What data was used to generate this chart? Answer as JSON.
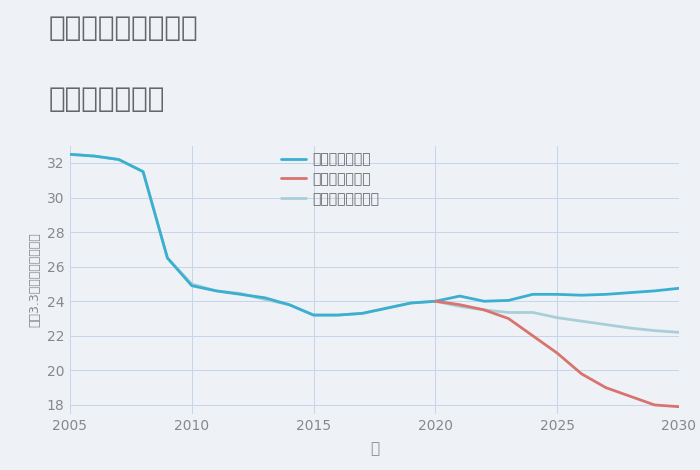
{
  "title_line1": "奈良県奈良市横井の",
  "title_line2": "土地の価格推移",
  "xlabel": "年",
  "ylabel": "坪（3.3㎡）単価（万円）",
  "background_color": "#eef2f7",
  "plot_bg_color": "#eef2f7",
  "good_scenario": {
    "label": "グッドシナリオ",
    "color": "#3aafd0",
    "x": [
      2005,
      2006,
      2007,
      2008,
      2009,
      2010,
      2011,
      2012,
      2013,
      2014,
      2015,
      2016,
      2017,
      2018,
      2019,
      2020,
      2021,
      2022,
      2023,
      2024,
      2025,
      2026,
      2027,
      2028,
      2029,
      2030
    ],
    "y": [
      32.5,
      32.4,
      32.2,
      31.5,
      26.5,
      24.9,
      24.6,
      24.4,
      24.2,
      23.8,
      23.2,
      23.2,
      23.3,
      23.6,
      23.9,
      24.0,
      24.3,
      24.0,
      24.05,
      24.4,
      24.4,
      24.35,
      24.4,
      24.5,
      24.6,
      24.75
    ]
  },
  "bad_scenario": {
    "label": "バッドシナリオ",
    "color": "#d9736e",
    "x": [
      2020,
      2021,
      2022,
      2023,
      2024,
      2025,
      2026,
      2027,
      2028,
      2029,
      2030
    ],
    "y": [
      24.0,
      23.8,
      23.5,
      23.0,
      22.0,
      21.0,
      19.8,
      19.0,
      18.5,
      18.0,
      17.9
    ]
  },
  "normal_scenario": {
    "label": "ノーマルシナリオ",
    "color": "#a8cfd8",
    "x": [
      2005,
      2006,
      2007,
      2008,
      2009,
      2010,
      2011,
      2012,
      2013,
      2014,
      2015,
      2016,
      2017,
      2018,
      2019,
      2020,
      2021,
      2022,
      2023,
      2024,
      2025,
      2026,
      2027,
      2028,
      2029,
      2030
    ],
    "y": [
      32.5,
      32.4,
      32.2,
      31.5,
      26.5,
      25.0,
      24.6,
      24.45,
      24.1,
      23.8,
      23.2,
      23.2,
      23.3,
      23.6,
      23.9,
      24.0,
      23.7,
      23.5,
      23.35,
      23.35,
      23.05,
      22.85,
      22.65,
      22.45,
      22.3,
      22.2
    ]
  },
  "ylim": [
    17.5,
    33
  ],
  "xlim": [
    2005,
    2030
  ],
  "yticks": [
    18,
    20,
    22,
    24,
    26,
    28,
    30,
    32
  ],
  "xticks": [
    2005,
    2010,
    2015,
    2020,
    2025,
    2030
  ],
  "title_color": "#666666",
  "tick_color": "#888888",
  "grid_color": "#c5d5e8",
  "legend_fontsize": 10,
  "title_fontsize": 20
}
